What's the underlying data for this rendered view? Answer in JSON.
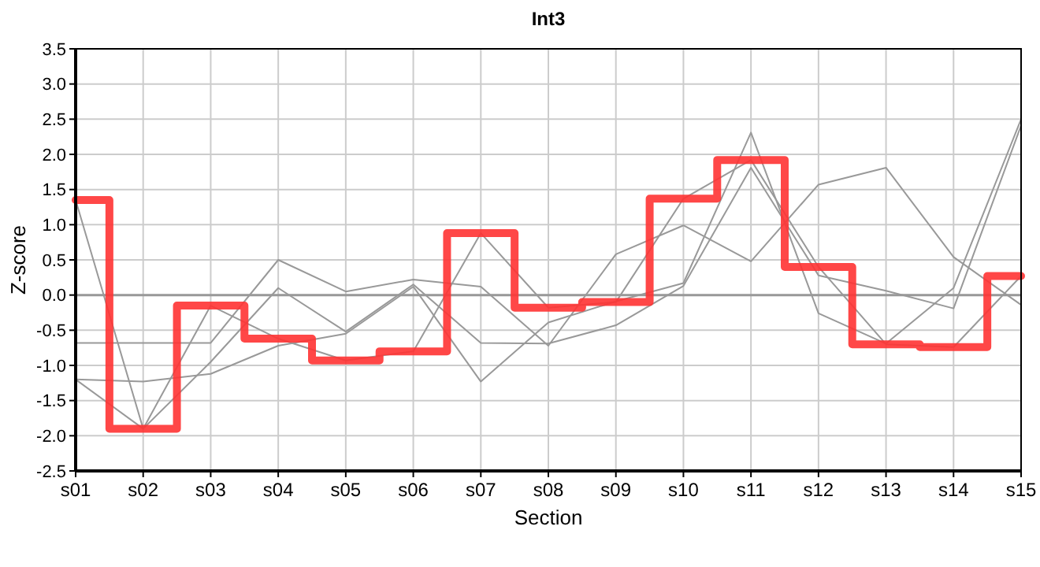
{
  "chart_data": {
    "type": "line",
    "title": "Int3",
    "xlabel": "Section",
    "ylabel": "Z-score",
    "categories": [
      "s01",
      "s02",
      "s03",
      "s04",
      "s05",
      "s06",
      "s07",
      "s08",
      "s09",
      "s10",
      "s11",
      "s12",
      "s13",
      "s14",
      "s15"
    ],
    "series": [
      {
        "color": "#999999",
        "values": [
          1.35,
          -1.9,
          -0.15,
          -0.62,
          -0.93,
          -0.8,
          0.88,
          -0.18,
          -0.1,
          1.37,
          1.92,
          0.4,
          -0.7,
          -0.74,
          0.27
        ]
      },
      {
        "color": "#999999",
        "values": [
          -0.68,
          -0.68,
          -0.68,
          0.5,
          0.05,
          0.22,
          0.12,
          -0.72,
          0.58,
          0.99,
          0.48,
          1.57,
          1.81,
          0.54,
          -0.14
        ]
      },
      {
        "color": "#999999",
        "values": [
          -1.2,
          -1.9,
          -0.95,
          0.1,
          -0.52,
          0.15,
          -0.68,
          -0.69,
          -0.43,
          0.13,
          1.81,
          0.28,
          0.06,
          -0.19,
          2.41
        ]
      },
      {
        "color": "#999999",
        "values": [
          -1.2,
          -1.23,
          -1.12,
          -0.72,
          -0.55,
          0.12,
          -1.23,
          -0.39,
          -0.09,
          0.17,
          2.31,
          -0.26,
          -0.69,
          0.1,
          2.5
        ]
      },
      {
        "type": "step",
        "color": "#ff3333",
        "values": [
          1.35,
          -1.9,
          -0.15,
          -0.62,
          -0.93,
          -0.8,
          0.88,
          -0.18,
          -0.1,
          1.37,
          1.92,
          0.4,
          -0.7,
          -0.74,
          0.27
        ]
      }
    ],
    "ylim": [
      -2.5,
      3.5
    ],
    "yticks": [
      -2.5,
      {
        "value": -2,
        "label": "-2.0"
      },
      -1.5,
      {
        "value": -1,
        "label": "-1.0"
      },
      -0.5,
      {
        "value": 0,
        "label": "0.0"
      },
      0.5,
      {
        "value": 1,
        "label": "1.0"
      },
      1.5,
      {
        "value": 2,
        "label": "2.0"
      },
      2.5,
      {
        "value": 3,
        "label": "3.0"
      },
      3.5
    ],
    "grid": true,
    "ref_lines": [
      {
        "axis": "y",
        "value": 0,
        "color": "#999999"
      }
    ]
  }
}
